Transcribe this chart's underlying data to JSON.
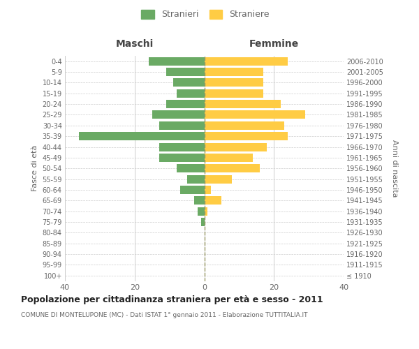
{
  "age_groups": [
    "100+",
    "95-99",
    "90-94",
    "85-89",
    "80-84",
    "75-79",
    "70-74",
    "65-69",
    "60-64",
    "55-59",
    "50-54",
    "45-49",
    "40-44",
    "35-39",
    "30-34",
    "25-29",
    "20-24",
    "15-19",
    "10-14",
    "5-9",
    "0-4"
  ],
  "birth_years": [
    "≤ 1910",
    "1911-1915",
    "1916-1920",
    "1921-1925",
    "1926-1930",
    "1931-1935",
    "1936-1940",
    "1941-1945",
    "1946-1950",
    "1951-1955",
    "1956-1960",
    "1961-1965",
    "1966-1970",
    "1971-1975",
    "1976-1980",
    "1981-1985",
    "1986-1990",
    "1991-1995",
    "1996-2000",
    "2001-2005",
    "2006-2010"
  ],
  "maschi": [
    0,
    0,
    0,
    0,
    0,
    1,
    2,
    3,
    7,
    5,
    8,
    13,
    13,
    36,
    13,
    15,
    11,
    8,
    9,
    11,
    16
  ],
  "femmine": [
    0,
    0,
    0,
    0,
    0,
    0,
    1,
    5,
    2,
    8,
    16,
    14,
    18,
    24,
    23,
    29,
    22,
    17,
    17,
    17,
    24
  ],
  "male_color": "#6aaa64",
  "female_color": "#ffcc44",
  "title": "Popolazione per cittadinanza straniera per età e sesso - 2011",
  "subtitle": "COMUNE DI MONTELUPONE (MC) - Dati ISTAT 1° gennaio 2011 - Elaborazione TUTTITALIA.IT",
  "label_maschi": "Maschi",
  "label_femmine": "Femmine",
  "ylabel_left": "Fasce di età",
  "ylabel_right": "Anni di nascita",
  "legend_male": "Stranieri",
  "legend_female": "Straniere",
  "xlim": 40,
  "background_color": "#ffffff",
  "grid_color": "#cccccc",
  "label_color": "#666666",
  "center_line_color": "#999966"
}
